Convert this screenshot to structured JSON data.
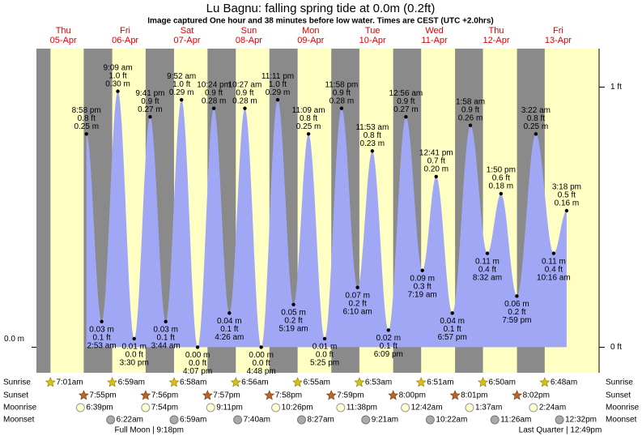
{
  "chart_data": {
    "type": "area",
    "title": "Lu Bagnu: falling  spring tide at 0.0m (0.2ft)",
    "subtitle": "Image captured One hour and 38 minutes before low water. Times are CEST (UTC +2.0hrs)",
    "color": "#a0a8f5",
    "ylim": [
      -0.03,
      0.35
    ],
    "yticks": [
      {
        "value": 0,
        "label": "0.0 m"
      }
    ],
    "y2lim": [
      -0.098,
      1.148
    ],
    "y2ticks": [
      {
        "value": 0,
        "label": "0 ft"
      },
      {
        "value": 1,
        "label": "1 ft"
      }
    ],
    "row_labels": [
      "Sunrise",
      "Sunset",
      "Moonrise",
      "Moonset"
    ],
    "days": [
      {
        "weekday": "Thu",
        "date": "05-Apr",
        "tide_times": [
          "8:58 pm"
        ],
        "values": [
          0.25
        ],
        "value_labels": [
          "0.25 m"
        ],
        "ft_labels": [
          "0.8 ft"
        ],
        "sunrise": "7:01am",
        "sunset": "7:55pm",
        "moonrise": "6:39pm",
        "moonset": null
      },
      {
        "weekday": "Fri",
        "date": "06-Apr",
        "tide_times": [
          "2:53 am",
          "9:09 am",
          "3:30 pm",
          "9:41 pm"
        ],
        "values": [
          0.03,
          0.3,
          0.01,
          0.27
        ],
        "value_labels": [
          "0.03 m",
          "0.30 m",
          "0.01 m",
          "0.27 m"
        ],
        "ft_labels": [
          "0.1 ft",
          "1.0 ft",
          "0.0 ft",
          "0.9 ft"
        ],
        "sunrise": "6:59am",
        "sunset": "7:56pm",
        "moonrise": "7:54pm",
        "moonset": "6:22am",
        "moon_phase": "Full Moon | 9:18pm"
      },
      {
        "weekday": "Sat",
        "date": "07-Apr",
        "tide_times": [
          "3:44 am",
          "9:52 am",
          "4:07 pm",
          "10:24 pm"
        ],
        "values": [
          0.03,
          0.29,
          0.0,
          0.28
        ],
        "value_labels": [
          "0.03 m",
          "0.29 m",
          "0.00 m",
          "0.28 m"
        ],
        "ft_labels": [
          "0.1 ft",
          "1.0 ft",
          "0.0 ft",
          "0.9 ft"
        ],
        "sunrise": "6:58am",
        "sunset": "7:57pm",
        "moonrise": "9:11pm",
        "moonset": "6:59am"
      },
      {
        "weekday": "Sun",
        "date": "08-Apr",
        "tide_times": [
          "4:26 am",
          "10:27 am",
          "4:48 pm",
          "11:11 pm"
        ],
        "values": [
          0.04,
          0.28,
          0.0,
          0.29
        ],
        "value_labels": [
          "0.04 m",
          "0.28 m",
          "0.00 m",
          "0.29 m"
        ],
        "ft_labels": [
          "0.1 ft",
          "0.9 ft",
          "0.0 ft",
          "1.0 ft"
        ],
        "sunrise": "6:56am",
        "sunset": "7:58pm",
        "moonrise": "10:26pm",
        "moonset": "7:40am"
      },
      {
        "weekday": "Mon",
        "date": "09-Apr",
        "tide_times": [
          "5:19 am",
          "11:09 am",
          "5:25 pm",
          "11:58 pm"
        ],
        "values": [
          0.05,
          0.25,
          0.01,
          0.28
        ],
        "value_labels": [
          "0.05 m",
          "0.25 m",
          "0.01 m",
          "0.28 m"
        ],
        "ft_labels": [
          "0.2 ft",
          "0.8 ft",
          "0.0 ft",
          "0.9 ft"
        ],
        "sunrise": "6:55am",
        "sunset": "7:59pm",
        "moonrise": "11:38pm",
        "moonset": "8:27am"
      },
      {
        "weekday": "Tue",
        "date": "10-Apr",
        "tide_times": [
          "6:10 am",
          "11:53 am",
          "6:09 pm"
        ],
        "values": [
          0.07,
          0.23,
          0.02
        ],
        "value_labels": [
          "0.07 m",
          "0.23 m",
          "0.02 m"
        ],
        "ft_labels": [
          "0.2 ft",
          "0.8 ft",
          "0.1 ft"
        ],
        "sunrise": "6:53am",
        "sunset": "8:00pm",
        "moonrise": null,
        "moonset": "9:21am"
      },
      {
        "weekday": "Wed",
        "date": "11-Apr",
        "tide_times": [
          "12:56 am",
          "7:19 am",
          "12:41 pm",
          "6:57 pm"
        ],
        "values": [
          0.27,
          0.09,
          0.2,
          0.04
        ],
        "value_labels": [
          "0.27 m",
          "0.09 m",
          "0.20 m",
          "0.04 m"
        ],
        "ft_labels": [
          "0.9 ft",
          "0.3 ft",
          "0.7 ft",
          "0.1 ft"
        ],
        "sunrise": "6:51am",
        "sunset": "8:01pm",
        "moonrise": "12:42am",
        "moonset": "10:22am"
      },
      {
        "weekday": "Thu",
        "date": "12-Apr",
        "tide_times": [
          "1:58 am",
          "8:32 am",
          "1:50 pm",
          "7:59 pm"
        ],
        "values": [
          0.26,
          0.11,
          0.18,
          0.06
        ],
        "value_labels": [
          "0.26 m",
          "0.11 m",
          "0.18 m",
          "0.06 m"
        ],
        "ft_labels": [
          "0.9 ft",
          "0.4 ft",
          "0.6 ft",
          "0.2 ft"
        ],
        "sunrise": "6:50am",
        "sunset": "8:02pm",
        "moonrise": "1:37am",
        "moonset": "11:26am"
      },
      {
        "weekday": "Fri",
        "date": "13-Apr",
        "tide_times": [
          "3:22 am",
          "10:16 am",
          "3:18 pm"
        ],
        "values": [
          0.25,
          0.11,
          0.16
        ],
        "value_labels": [
          "0.25 m",
          "0.11 m",
          "0.16 m"
        ],
        "ft_labels": [
          "0.8 ft",
          "0.4 ft",
          "0.5 ft"
        ],
        "sunrise": "6:48am",
        "sunset": null,
        "moonrise": "2:24am",
        "moonset": "12:32pm",
        "moon_phase": "Last Quarter | 12:49pm"
      }
    ]
  }
}
